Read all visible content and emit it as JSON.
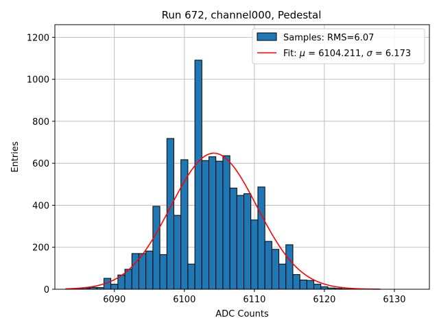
{
  "chart_data": {
    "type": "bar",
    "title": "Run 672, channel000, Pedestal",
    "xlabel": "ADC Counts",
    "ylabel": "Entries",
    "xlim": [
      6081.5,
      6135
    ],
    "ylim": [
      0,
      1260
    ],
    "xticks": [
      6090,
      6100,
      6110,
      6120,
      6130
    ],
    "yticks": [
      0,
      200,
      400,
      600,
      800,
      1000,
      1200
    ],
    "grid": true,
    "legend_position": "top-right",
    "bin_width": 1,
    "bins": [
      {
        "x": 6084,
        "value": 2
      },
      {
        "x": 6085,
        "value": 4
      },
      {
        "x": 6086,
        "value": 6
      },
      {
        "x": 6087,
        "value": 9
      },
      {
        "x": 6088,
        "value": 8
      },
      {
        "x": 6089,
        "value": 52
      },
      {
        "x": 6090,
        "value": 24
      },
      {
        "x": 6091,
        "value": 68
      },
      {
        "x": 6092,
        "value": 95
      },
      {
        "x": 6093,
        "value": 170
      },
      {
        "x": 6094,
        "value": 170
      },
      {
        "x": 6095,
        "value": 182
      },
      {
        "x": 6096,
        "value": 395
      },
      {
        "x": 6097,
        "value": 165
      },
      {
        "x": 6098,
        "value": 718
      },
      {
        "x": 6099,
        "value": 352
      },
      {
        "x": 6100,
        "value": 617
      },
      {
        "x": 6101,
        "value": 120
      },
      {
        "x": 6102,
        "value": 1091
      },
      {
        "x": 6103,
        "value": 613
      },
      {
        "x": 6104,
        "value": 631
      },
      {
        "x": 6105,
        "value": 610
      },
      {
        "x": 6106,
        "value": 636
      },
      {
        "x": 6107,
        "value": 482
      },
      {
        "x": 6108,
        "value": 447
      },
      {
        "x": 6109,
        "value": 455
      },
      {
        "x": 6110,
        "value": 330
      },
      {
        "x": 6111,
        "value": 487
      },
      {
        "x": 6112,
        "value": 228
      },
      {
        "x": 6113,
        "value": 190
      },
      {
        "x": 6114,
        "value": 120
      },
      {
        "x": 6115,
        "value": 212
      },
      {
        "x": 6116,
        "value": 70
      },
      {
        "x": 6117,
        "value": 44
      },
      {
        "x": 6118,
        "value": 42
      },
      {
        "x": 6119,
        "value": 24
      },
      {
        "x": 6120,
        "value": 12
      },
      {
        "x": 6121,
        "value": 6
      },
      {
        "x": 6122,
        "value": 4
      },
      {
        "x": 6123,
        "value": 2
      },
      {
        "x": 6124,
        "value": 1
      }
    ],
    "fit": {
      "mu": 6104.211,
      "sigma": 6.173,
      "amplitude": 648,
      "x_range": [
        6083,
        6128
      ]
    },
    "legend": [
      {
        "label": "Samples: RMS=6.07",
        "kind": "patch",
        "color": "#1f77b4"
      },
      {
        "label_prefix": "Fit: ",
        "mu_symbol": "μ",
        "mu_value": " = 6104.211, ",
        "sigma_symbol": "σ",
        "sigma_value": " = 6.173",
        "kind": "line",
        "color": "#ff0000"
      }
    ],
    "colors": {
      "bar": "#1f77b4",
      "bar_edge": "#000000",
      "fit": "#ff0000",
      "grid": "#b0b0b0"
    }
  }
}
